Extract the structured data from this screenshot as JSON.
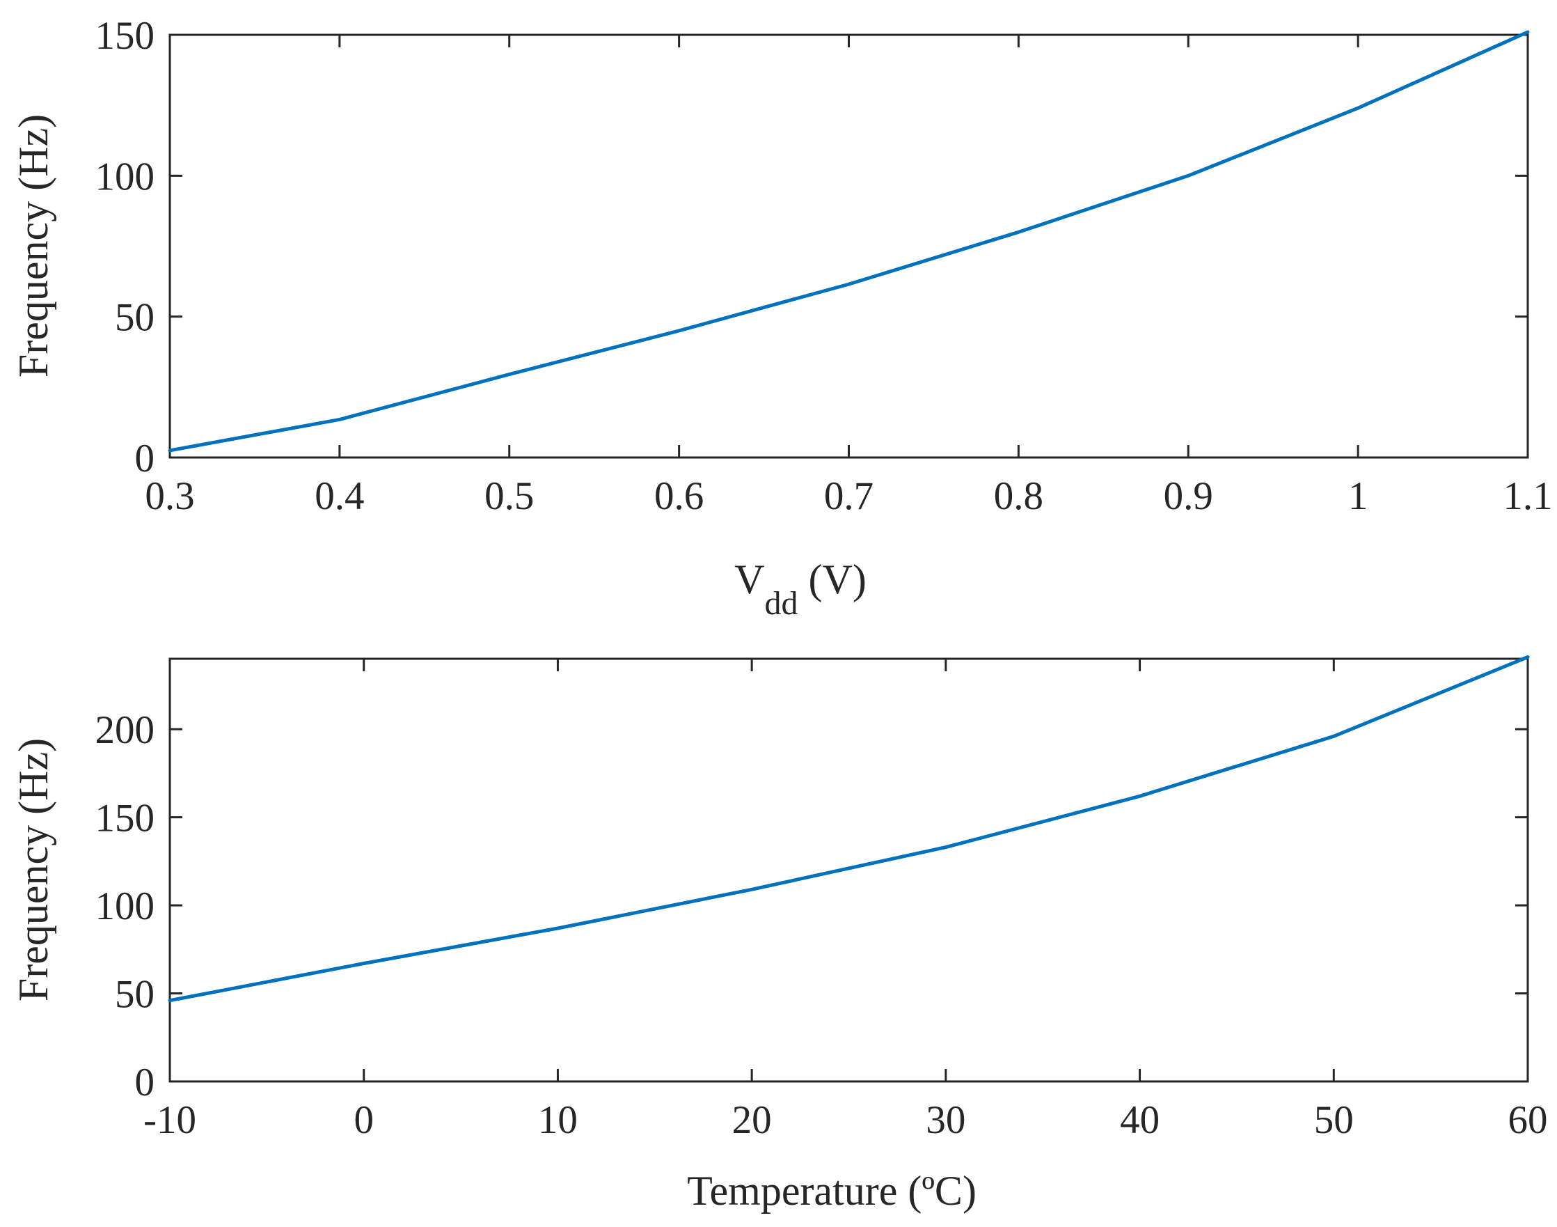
{
  "chart_data": [
    {
      "type": "line",
      "title": "",
      "xlabel_main": "V",
      "xlabel_sub": "dd",
      "xlabel_unit": " (V)",
      "ylabel": "Frequency (Hz)",
      "xlim": [
        0.3,
        1.1
      ],
      "ylim": [
        0,
        150
      ],
      "xticks": [
        0.3,
        0.4,
        0.5,
        0.6,
        0.7,
        0.8,
        0.9,
        1.0,
        1.1
      ],
      "xtick_labels": [
        "0.3",
        "0.4",
        "0.5",
        "0.6",
        "0.7",
        "0.8",
        "0.9",
        "1",
        "1.1"
      ],
      "yticks": [
        0,
        50,
        100,
        150
      ],
      "ytick_labels": [
        "0",
        "50",
        "100",
        "150"
      ],
      "grid": false,
      "series": [
        {
          "color": "#0072BD",
          "x": [
            0.3,
            0.4,
            0.5,
            0.6,
            0.7,
            0.8,
            0.9,
            1.0,
            1.1
          ],
          "y": [
            2.5,
            13.5,
            29.5,
            45,
            61.5,
            80,
            100,
            124,
            151
          ]
        }
      ]
    },
    {
      "type": "line",
      "title": "",
      "xlabel": "Temperature (ºC)",
      "ylabel": "Frequency (Hz)",
      "xlim": [
        -10,
        60
      ],
      "ylim": [
        0,
        240
      ],
      "xticks": [
        -10,
        0,
        10,
        20,
        30,
        40,
        50,
        60
      ],
      "xtick_labels": [
        "-10",
        "0",
        "10",
        "20",
        "30",
        "40",
        "50",
        "60"
      ],
      "yticks": [
        0,
        50,
        100,
        150,
        200
      ],
      "ytick_labels": [
        "0",
        "50",
        "100",
        "150",
        "200"
      ],
      "grid": false,
      "series": [
        {
          "color": "#0072BD",
          "x": [
            -10,
            0,
            10,
            20,
            30,
            40,
            50,
            60
          ],
          "y": [
            46,
            67,
            87,
            109,
            133,
            162,
            196,
            241
          ]
        }
      ]
    }
  ]
}
